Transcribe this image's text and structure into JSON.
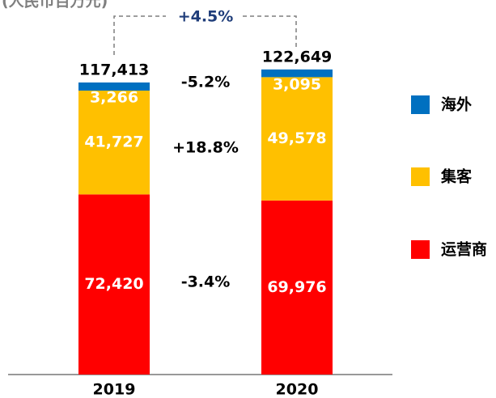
{
  "chart_data": {
    "type": "stacked_bar",
    "subtitle": "(人民币百万元)",
    "categories": [
      "2019",
      "2020"
    ],
    "series": [
      {
        "name": "运营商",
        "color": "#ff0000",
        "values": [
          72420,
          69976
        ],
        "value_labels": [
          "72,420",
          "69,976"
        ]
      },
      {
        "name": "集客",
        "color": "#ffc000",
        "values": [
          41727,
          49578
        ],
        "value_labels": [
          "41,727",
          "49,578"
        ]
      },
      {
        "name": "海外",
        "color": "#0070c0",
        "values": [
          3266,
          3095
        ],
        "value_labels": [
          "3,266",
          "3,095"
        ]
      }
    ],
    "totals": [
      117413,
      122649
    ],
    "total_labels": [
      "117,413",
      "122,649"
    ],
    "changes": [
      "-3.4%",
      "+18.8%",
      "-5.2%"
    ],
    "total_change": "+4.5%"
  }
}
